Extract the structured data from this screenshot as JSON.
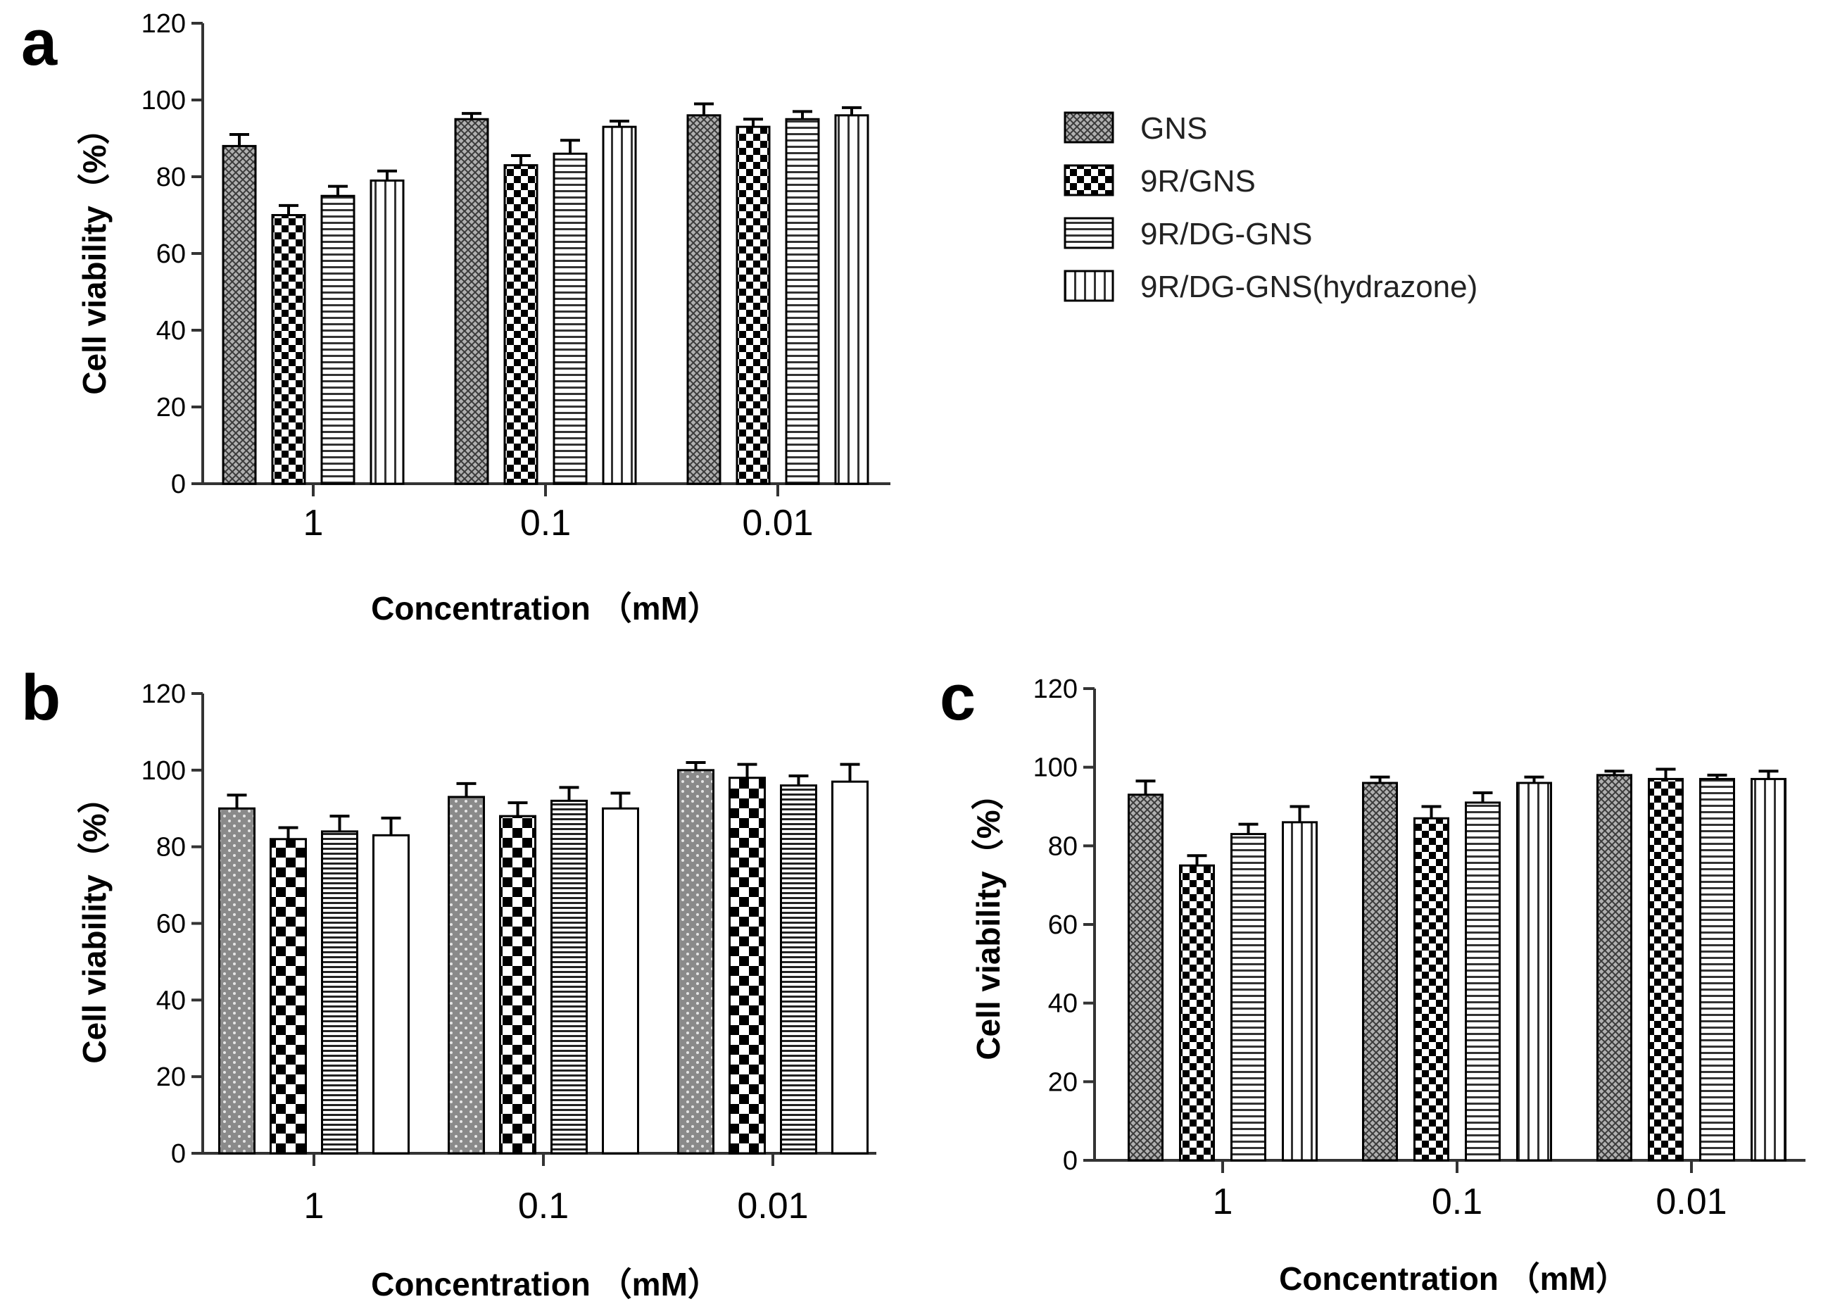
{
  "legend": {
    "items": [
      {
        "label": "GNS",
        "pattern": "crosshatch"
      },
      {
        "label": "9R/GNS",
        "pattern": "checker"
      },
      {
        "label": "9R/DG-GNS",
        "pattern": "hlines"
      },
      {
        "label": "9R/DG-GNS(hydrazone)",
        "pattern": "vlines"
      }
    ]
  },
  "chart_data": [
    {
      "panel": "a",
      "type": "bar",
      "xlabel": "Concentration （mM）",
      "ylabel": "Cell viability（%）",
      "ylim": [
        0,
        120
      ],
      "yticks": [
        0,
        20,
        40,
        60,
        80,
        100,
        120
      ],
      "categories": [
        "1",
        "0.1",
        "0.01"
      ],
      "series": [
        {
          "name": "GNS",
          "values": [
            88,
            95,
            96
          ],
          "errors": [
            3,
            1.5,
            3
          ]
        },
        {
          "name": "9R/GNS",
          "values": [
            70,
            83,
            93
          ],
          "errors": [
            2.5,
            2.5,
            2
          ]
        },
        {
          "name": "9R/DG-GNS",
          "values": [
            75,
            86,
            95
          ],
          "errors": [
            2.5,
            3.5,
            2
          ]
        },
        {
          "name": "9R/DG-GNS(hydrazone)",
          "values": [
            79,
            93,
            96
          ],
          "errors": [
            2.5,
            1.5,
            2
          ]
        }
      ]
    },
    {
      "panel": "b",
      "type": "bar",
      "xlabel": "Concentration （mM）",
      "ylabel": "Cell viability（%）",
      "ylim": [
        0,
        120
      ],
      "yticks": [
        0,
        20,
        40,
        60,
        80,
        100,
        120
      ],
      "categories": [
        "1",
        "0.1",
        "0.01"
      ],
      "series": [
        {
          "name": "GNS",
          "values": [
            90,
            93,
            100
          ],
          "errors": [
            3.5,
            3.5,
            2
          ]
        },
        {
          "name": "9R/GNS",
          "values": [
            82,
            88,
            98
          ],
          "errors": [
            3,
            3.5,
            3.5
          ]
        },
        {
          "name": "9R/DG-GNS",
          "values": [
            84,
            92,
            96
          ],
          "errors": [
            4,
            3.5,
            2.5
          ]
        },
        {
          "name": "9R/DG-GNS(hydrazone)",
          "values": [
            83,
            90,
            97
          ],
          "errors": [
            4.5,
            4,
            4.5
          ]
        }
      ]
    },
    {
      "panel": "c",
      "type": "bar",
      "xlabel": "Concentration （mM）",
      "ylabel": "Cell viability（%）",
      "ylim": [
        0,
        120
      ],
      "yticks": [
        0,
        20,
        40,
        60,
        80,
        100,
        120
      ],
      "categories": [
        "1",
        "0.1",
        "0.01"
      ],
      "series": [
        {
          "name": "GNS",
          "values": [
            93,
            96,
            98
          ],
          "errors": [
            3.5,
            1.5,
            1
          ]
        },
        {
          "name": "9R/GNS",
          "values": [
            75,
            87,
            97
          ],
          "errors": [
            2.5,
            3,
            2.5
          ]
        },
        {
          "name": "9R/DG-GNS",
          "values": [
            83,
            91,
            97
          ],
          "errors": [
            2.5,
            2.5,
            1
          ]
        },
        {
          "name": "9R/DG-GNS(hydrazone)",
          "values": [
            86,
            96,
            97
          ],
          "errors": [
            4,
            1.5,
            2
          ]
        }
      ]
    }
  ]
}
